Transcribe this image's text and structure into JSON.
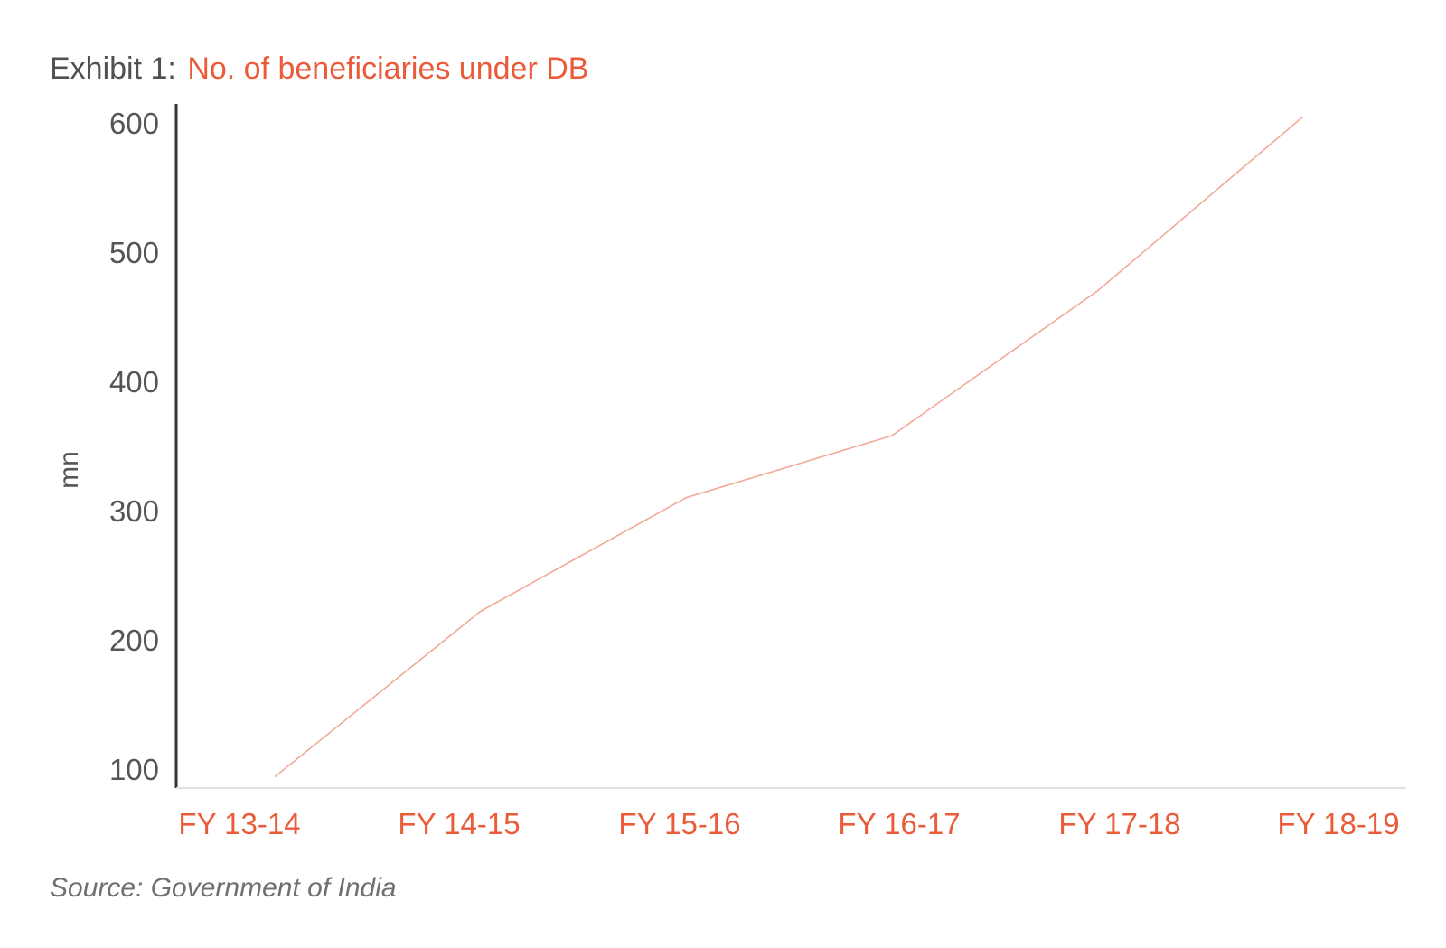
{
  "chart_data": {
    "type": "line",
    "title_prefix": "Exhibit 1:",
    "title": "No. of beneficiaries under DB",
    "ylabel": "mn",
    "xlabel": "",
    "categories": [
      "FY 13-14",
      "FY 14-15",
      "FY 15-16",
      "FY 16-17",
      "FY 17-18",
      "FY 18-19"
    ],
    "series": [
      {
        "values": [
          94,
          222,
          310,
          358,
          470,
          605
        ]
      }
    ],
    "ylim": [
      95,
      625
    ],
    "yticks": [
      100,
      200,
      300,
      400,
      500,
      600
    ],
    "grid": false,
    "source": "Source: Government of India",
    "colors": {
      "accent": "#ea5b3a",
      "line": "#f3a998",
      "text": "#555555",
      "axis": "#333333",
      "baseline": "#e0e0e0"
    }
  }
}
